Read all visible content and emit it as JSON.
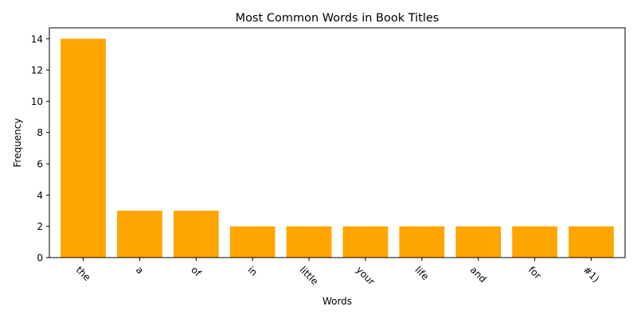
{
  "chart_data": {
    "type": "bar",
    "title": "Most Common Words in Book Titles",
    "xlabel": "Words",
    "ylabel": "Frequency",
    "categories": [
      "the",
      "a",
      "of",
      "in",
      "little",
      "your",
      "life",
      "and",
      "for",
      "#1)"
    ],
    "values": [
      14,
      3,
      3,
      2,
      2,
      2,
      2,
      2,
      2,
      2
    ],
    "ylim": [
      0,
      14.7
    ],
    "yticks": [
      0,
      2,
      4,
      6,
      8,
      10,
      12,
      14
    ],
    "bar_color": "#ffa500",
    "grid": false,
    "xtick_rotation": 45
  }
}
